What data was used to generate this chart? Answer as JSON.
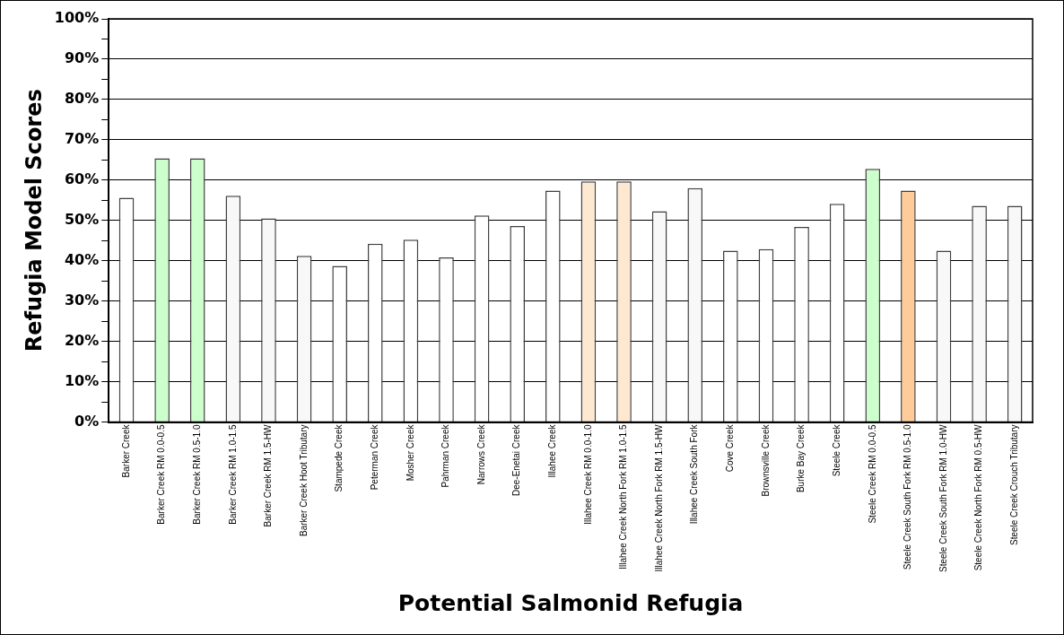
{
  "chart_data": {
    "type": "bar",
    "xlabel": "Potential Salmonid Refugia",
    "ylabel": "Refugia Model Scores",
    "categories": [
      "Barker Creek",
      "Barker Creek RM 0.0-0.5",
      "Barker Creek RM 0.5-1.0",
      "Barker Creek RM 1.0-1.5",
      "Barker Creek RM 1.5-HW",
      "Barker Creek Hoot Tributary",
      "Stampede Creek",
      "Peterman Creek",
      "Mosher Creek",
      "Pahrman Creek",
      "Narrows Creek",
      "Dee-Enetai Creek",
      "Illahee Creek",
      "Illahee Creek RM 0.0-1.0",
      "Illahee Creek North Fork RM 1.0-1.5",
      "Illahee Creek North Fork RM 1.5-HW",
      "Illahee Creek South Fork",
      "Cove Creek",
      "Brownsville Creek",
      "Burke Bay Creek",
      "Steele Creek",
      "Steele Creek RM 0.0-0.5",
      "Steele Creek South Fork RM 0.5-1.0",
      "Steele Creek South Fork RM 1.0-HW",
      "Steele Creek North Fork RM 0.5-HW",
      "Steele Creek Crouch Tributary"
    ],
    "values": [
      55.6,
      65.4,
      65.4,
      56.1,
      50.5,
      41.2,
      38.7,
      44.2,
      45.2,
      40.8,
      51.2,
      48.6,
      57.4,
      59.7,
      59.7,
      52.3,
      58.0,
      42.5,
      42.9,
      48.4,
      54.1,
      62.8,
      57.4,
      42.5,
      53.6,
      53.6
    ],
    "colors": [
      "#ffffff",
      "#ccffcc",
      "#ccffcc",
      "#f8f8f8",
      "#f8f8f8",
      "#f8f8f8",
      "#ffffff",
      "#ffffff",
      "#ffffff",
      "#ffffff",
      "#ffffff",
      "#ffffff",
      "#ffffff",
      "#ffe8d2",
      "#ffe8d2",
      "#f8f8f8",
      "#f8f8f8",
      "#ffffff",
      "#ffffff",
      "#ffffff",
      "#ffffff",
      "#ccffcc",
      "#ffcc99",
      "#f8f8f8",
      "#f8f8f8",
      "#f8f8f8"
    ],
    "ylim": [
      0,
      100
    ],
    "yticks": [
      {
        "value": 0,
        "label": "0%"
      },
      {
        "value": 5,
        "label": null
      },
      {
        "value": 10,
        "label": "10%"
      },
      {
        "value": 15,
        "label": null
      },
      {
        "value": 20,
        "label": "20%"
      },
      {
        "value": 25,
        "label": null
      },
      {
        "value": 30,
        "label": "30%"
      },
      {
        "value": 35,
        "label": null
      },
      {
        "value": 40,
        "label": "40%"
      },
      {
        "value": 45,
        "label": null
      },
      {
        "value": 50,
        "label": "50%"
      },
      {
        "value": 55,
        "label": null
      },
      {
        "value": 60,
        "label": "60%"
      },
      {
        "value": 65,
        "label": null
      },
      {
        "value": 70,
        "label": "70%"
      },
      {
        "value": 75,
        "label": null
      },
      {
        "value": 80,
        "label": "80%"
      },
      {
        "value": 85,
        "label": null
      },
      {
        "value": 90,
        "label": "90%"
      },
      {
        "value": 95,
        "label": null
      },
      {
        "value": 100,
        "label": "100%"
      }
    ],
    "grid": "y",
    "legend": false
  }
}
